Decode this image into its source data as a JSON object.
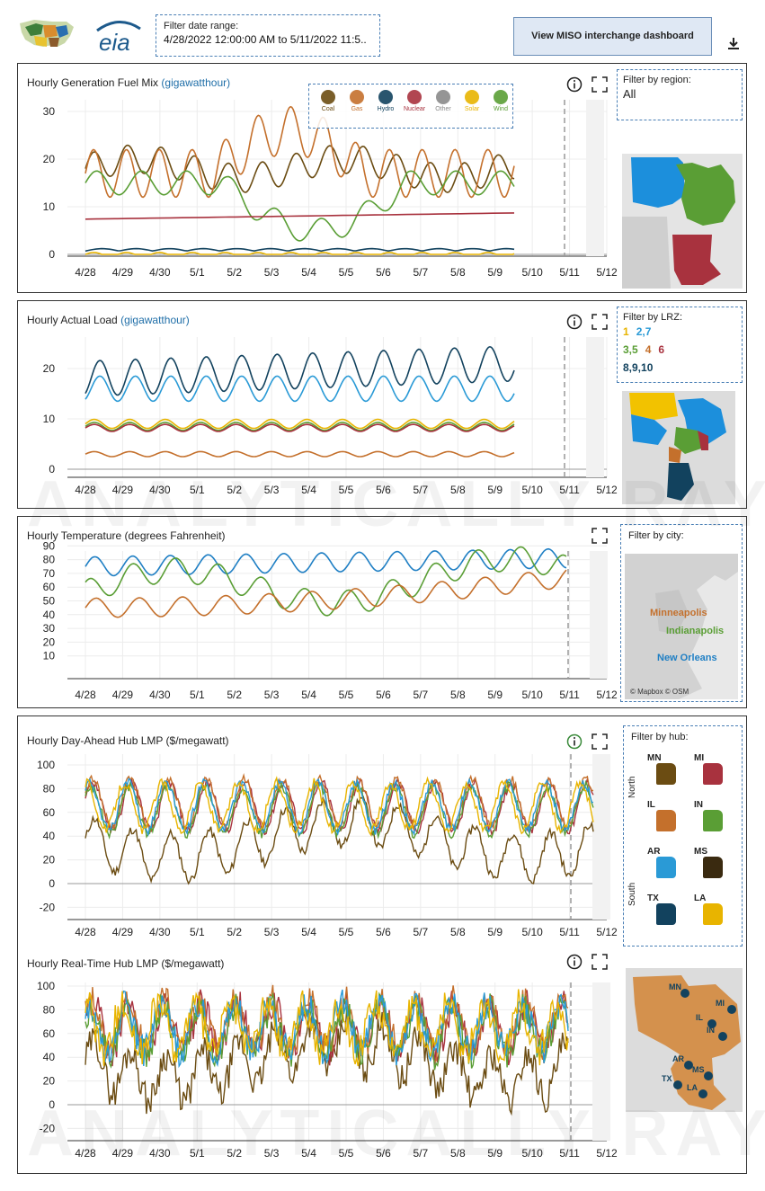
{
  "header": {
    "date_label": "Filter date range:",
    "date_value": "4/28/2022 12:00:00 AM to 5/11/2022 11:5..",
    "dashboard_button": "View MISO interchange dashboard"
  },
  "watermark": "ANALYTICALLY RAY",
  "x_dates": [
    "4/28",
    "4/29",
    "4/30",
    "5/1",
    "5/2",
    "5/3",
    "5/4",
    "5/5",
    "5/6",
    "5/7",
    "5/8",
    "5/9",
    "5/10",
    "5/11",
    "5/12"
  ],
  "fuel_panel": {
    "title": "Hourly Generation Fuel Mix",
    "unit": "(gigawatthour)",
    "region_label": "Filter by region:",
    "region_value": "All",
    "legend": [
      {
        "name": "Coal",
        "color": "#6b4c12"
      },
      {
        "name": "Gas",
        "color": "#c4702c"
      },
      {
        "name": "Hydro",
        "color": "#12425e"
      },
      {
        "name": "Nuclear",
        "color": "#a8323e"
      },
      {
        "name": "Other",
        "color": "#8a8a8a"
      },
      {
        "name": "Solar",
        "color": "#e8b400"
      },
      {
        "name": "Wind",
        "color": "#5a9e35"
      }
    ],
    "y_ticks": [
      "30",
      "20",
      "10",
      "0"
    ]
  },
  "load_panel": {
    "title": "Hourly Actual Load",
    "unit": "(gigawatthour)",
    "lrz_label": "Filter by LRZ:",
    "lrz": [
      {
        "label": "1",
        "color": "#e8b400"
      },
      {
        "label": "2,7",
        "color": "#2a9ad6"
      },
      {
        "label": "3,5",
        "color": "#5a9e35"
      },
      {
        "label": "4",
        "color": "#c4702c"
      },
      {
        "label": "6",
        "color": "#a8323e"
      },
      {
        "label": "8,9,10",
        "color": "#12425e"
      }
    ],
    "y_ticks": [
      "20",
      "10",
      "0"
    ]
  },
  "temp_panel": {
    "title": "Hourly Temperature (degrees Fahrenheit)",
    "city_label": "Filter by city:",
    "cities": [
      {
        "name": "Minneapolis",
        "color": "#c4702c"
      },
      {
        "name": "Indianapolis",
        "color": "#5a9e35"
      },
      {
        "name": "New Orleans",
        "color": "#1f7fc4"
      }
    ],
    "attribution": "© Mapbox © OSM",
    "y_ticks": [
      "90",
      "80",
      "70",
      "60",
      "50",
      "40",
      "30",
      "20",
      "10"
    ]
  },
  "lmp_panel": {
    "da_title": "Hourly Day-Ahead Hub LMP ($/megawatt)",
    "rt_title": "Hourly Real-Time Hub LMP ($/megawatt)",
    "hub_label": "Filter by hub:",
    "north_label": "North",
    "south_label": "South",
    "hubs": [
      {
        "name": "MN",
        "color": "#6b4c12"
      },
      {
        "name": "MI",
        "color": "#a8323e"
      },
      {
        "name": "IL",
        "color": "#c4702c"
      },
      {
        "name": "IN",
        "color": "#5a9e35"
      },
      {
        "name": "AR",
        "color": "#2a9ad6"
      },
      {
        "name": "MS",
        "color": "#3a2a10"
      },
      {
        "name": "TX",
        "color": "#12425e"
      },
      {
        "name": "LA",
        "color": "#e8b400"
      }
    ],
    "y_ticks": [
      "100",
      "80",
      "60",
      "40",
      "20",
      "0",
      "-20"
    ]
  }
}
